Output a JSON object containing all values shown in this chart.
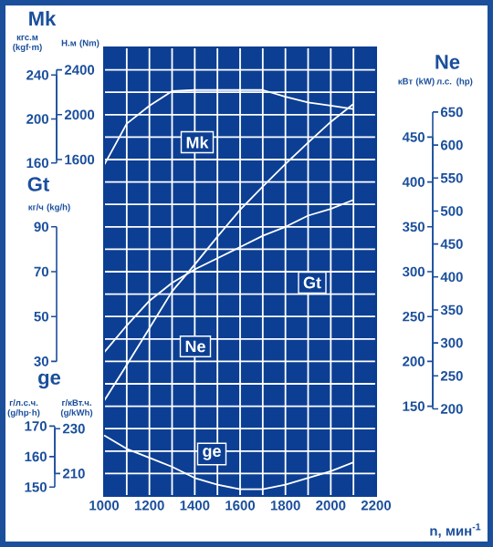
{
  "chart_data": [
    {
      "type": "line",
      "xlabel": "n, мин$^{-1}$",
      "x": [
        1000,
        1100,
        1200,
        1300,
        1400,
        1500,
        1600,
        1700,
        1800,
        1900,
        2000,
        2100
      ],
      "xlim": [
        1000,
        2200
      ],
      "xticks": [
        1000,
        1200,
        1400,
        1600,
        1800,
        2000,
        2200
      ],
      "grid": true,
      "ylabel": "Н.м (Nm)",
      "ylim": [
        -1400,
        2600
      ],
      "yticks": [
        1600,
        2000,
        2400
      ],
      "y2label": "кгс.м (kgf·m)",
      "y2lim": [
        -142.8,
        265.1
      ],
      "y2ticks": [
        160,
        200,
        240
      ],
      "series": [
        {
          "name": "Mk",
          "color": "#ffffff",
          "values": [
            1550,
            1920,
            2080,
            2210,
            2220,
            2220,
            2220,
            2220,
            2160,
            2110,
            2080,
            2050
          ]
        }
      ]
    },
    {
      "type": "line",
      "x": [
        1000,
        1100,
        1200,
        1300,
        1400,
        1500,
        1600,
        1700,
        1800,
        1900,
        2000,
        2100
      ],
      "xlim": [
        1000,
        2200
      ],
      "tick_labels": "y",
      "ylabel": "кВт (kW)",
      "ylim": [
        50,
        550
      ],
      "yticks": [
        150,
        200,
        250,
        300,
        350,
        400,
        450
      ],
      "y2label": "л.с. (hp)",
      "y2lim": [
        68,
        748
      ],
      "y2ticks": [
        200,
        250,
        300,
        350,
        400,
        450,
        500,
        550,
        600,
        650
      ],
      "series": [
        {
          "name": "Ne",
          "color": "#ffffff",
          "values": [
            156,
            196,
            237,
            278,
            308,
            339,
            369,
            395,
            420,
            444,
            467,
            487
          ]
        }
      ]
    },
    {
      "type": "line",
      "x": [
        1000,
        1100,
        1200,
        1300,
        1400,
        1500,
        1600,
        1700,
        1800,
        1900,
        2000,
        2100
      ],
      "xlim": [
        1000,
        2200
      ],
      "tick_labels": "y",
      "ylabel": "кг/ч (kg/h)",
      "ylim": [
        -30,
        170
      ],
      "yticks": [
        30,
        50,
        70,
        90
      ],
      "series": [
        {
          "name": "Gt",
          "color": "#ffffff",
          "values": [
            34,
            46,
            57,
            65,
            71,
            76,
            81,
            86,
            90,
            95,
            98,
            102
          ]
        }
      ]
    },
    {
      "type": "line",
      "x": [
        1000,
        1100,
        1200,
        1300,
        1400,
        1500,
        1600,
        1700,
        1800,
        1900,
        2000,
        2100
      ],
      "xlim": [
        1000,
        2200
      ],
      "tick_labels": "y",
      "ylabel": "г/кВт.ч. (g/kWh)",
      "ylim": [
        200,
        400
      ],
      "yticks": [
        210,
        230
      ],
      "y2label": "г/л.с.ч. (g/hp·h)",
      "y2lim": [
        147.1,
        294.2
      ],
      "y2ticks": [
        150,
        160,
        170
      ],
      "series": [
        {
          "name": "ge",
          "color": "#ffffff",
          "values": [
            227,
            221,
            217,
            213,
            208,
            205,
            203,
            203,
            205,
            208,
            211,
            215
          ]
        }
      ]
    }
  ]
}
